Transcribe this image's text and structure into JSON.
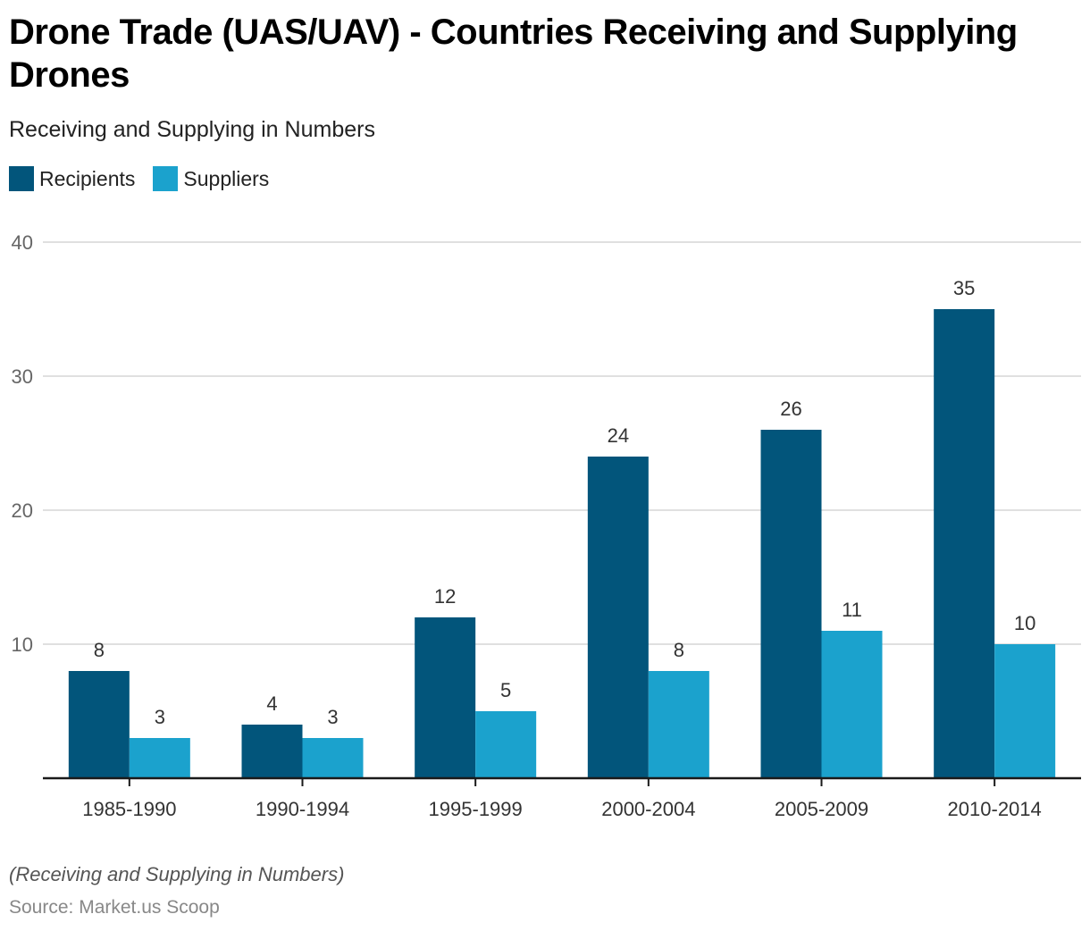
{
  "header": {
    "title": "Drone Trade (UAS/UAV) - Countries Receiving and Supplying Drones",
    "subtitle": "Receiving and Supplying in Numbers"
  },
  "legend": [
    {
      "label": "Recipients",
      "color": "#02557b"
    },
    {
      "label": "Suppliers",
      "color": "#1ba2cd"
    }
  ],
  "footer": {
    "note": "(Receiving and Supplying in Numbers)",
    "source": "Source: Market.us Scoop"
  },
  "chart_data": {
    "type": "bar",
    "title": "Drone Trade (UAS/UAV) - Countries Receiving and Supplying Drones",
    "subtitle": "Receiving and Supplying in Numbers",
    "xlabel": "",
    "ylabel": "",
    "categories": [
      "1985-1990",
      "1990-1994",
      "1995-1999",
      "2000-2004",
      "2005-2009",
      "2010-2014"
    ],
    "series": [
      {
        "name": "Recipients",
        "color": "#02557b",
        "values": [
          8,
          4,
          12,
          24,
          26,
          35
        ]
      },
      {
        "name": "Suppliers",
        "color": "#1ba2cd",
        "values": [
          3,
          3,
          5,
          8,
          11,
          10
        ]
      }
    ],
    "ylim": [
      0,
      40
    ],
    "yticks": [
      10,
      20,
      30,
      40
    ],
    "grid": true,
    "legend_position": "top-left",
    "data_labels": true
  }
}
